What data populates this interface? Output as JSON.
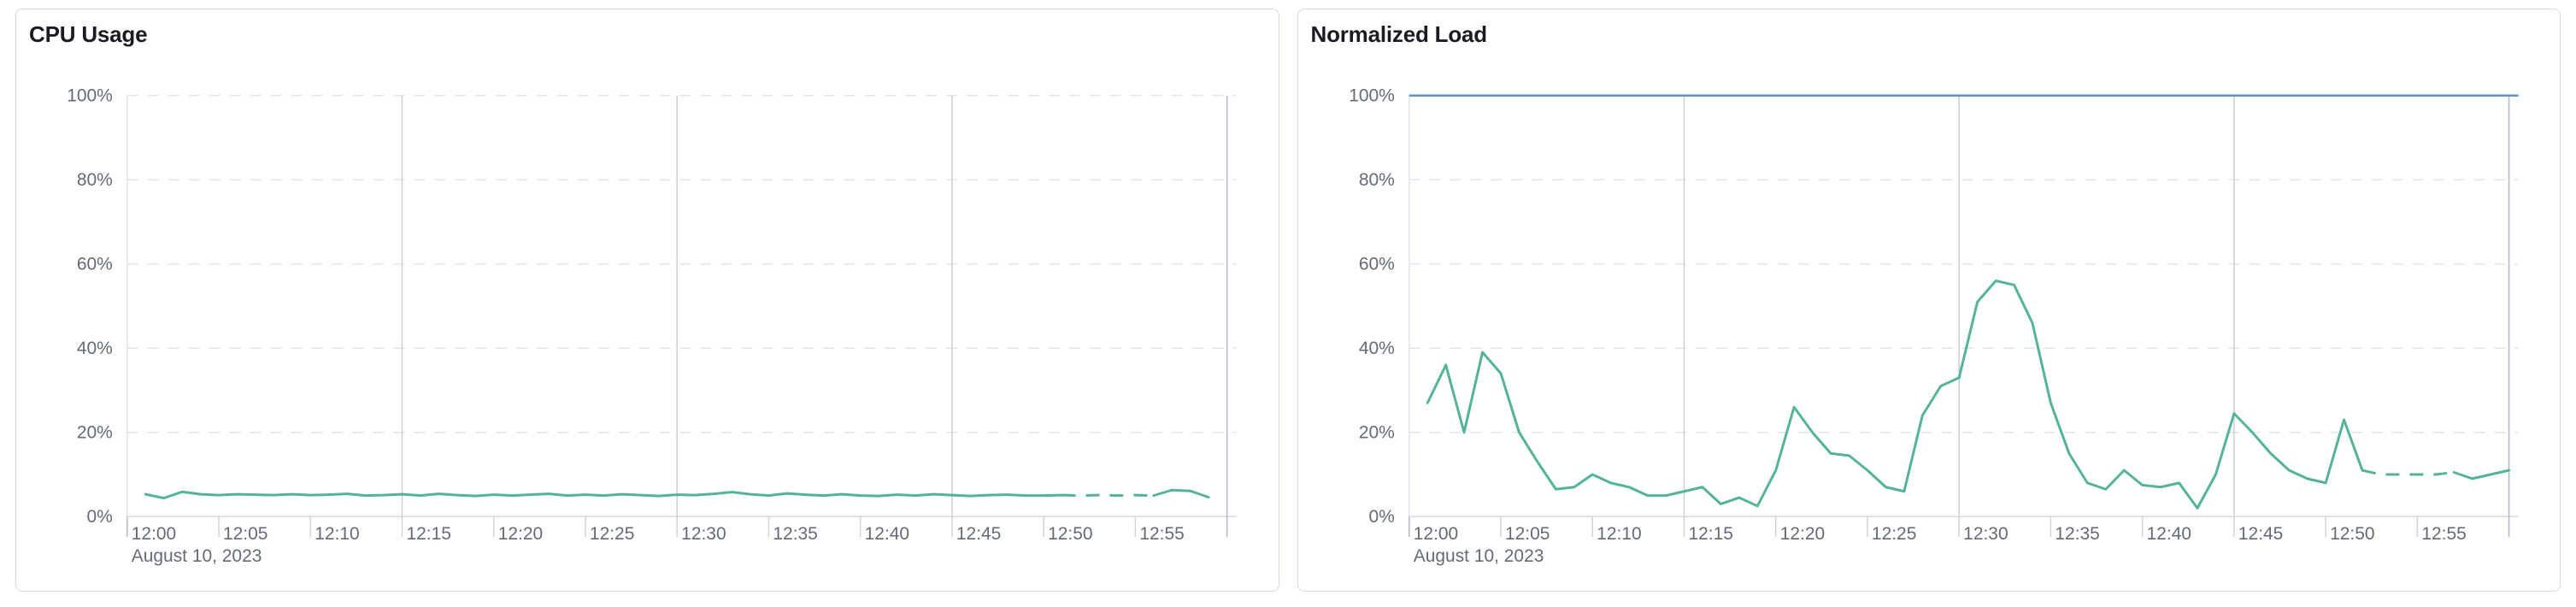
{
  "colors": {
    "page_background": "#ffffff",
    "panel_background": "#ffffff",
    "panel_border": "#d3dae6",
    "title_text": "#1a1c21",
    "axis_label_text": "#646a77",
    "h_gridline": "#e0e4ec",
    "v_gridline": "#c9cdd6",
    "axis_line": "#d6d9e0",
    "tick_mark": "#d0d4dc",
    "domain_edge_line": "#b4bac4",
    "series_green": "#54b399",
    "series_blue": "#6092c0"
  },
  "chart_data": [
    {
      "type": "line",
      "title": "CPU Usage",
      "x_axis": {
        "date_label": "August 10, 2023",
        "tick_labels": [
          "12:00",
          "12:05",
          "12:10",
          "12:15",
          "12:20",
          "12:25",
          "12:30",
          "12:35",
          "12:40",
          "12:45",
          "12:50",
          "12:55"
        ],
        "tick_interval_minutes": 5,
        "domain_minutes": [
          0,
          60
        ],
        "v_gridline_minutes": [
          15,
          30,
          45
        ],
        "domain_end_line_minute": 60
      },
      "y_axis": {
        "tick_labels": [
          "0%",
          "20%",
          "40%",
          "60%",
          "80%",
          "100%"
        ],
        "tick_values": [
          0,
          20,
          40,
          60,
          80,
          100
        ],
        "gridline_values": [
          20,
          40,
          60,
          80,
          100
        ],
        "ylim": [
          0,
          100
        ],
        "unit": "%"
      },
      "series": [
        {
          "name": "cpu-usage",
          "color": "#54b399",
          "start_minute": 1,
          "step_minutes": 1,
          "dashed_segment_minutes": [
            51,
            56
          ],
          "values": [
            5.3,
            4.4,
            5.9,
            5.3,
            5.1,
            5.3,
            5.2,
            5.1,
            5.3,
            5.1,
            5.2,
            5.4,
            5.0,
            5.1,
            5.3,
            5.0,
            5.4,
            5.1,
            4.9,
            5.2,
            5.0,
            5.2,
            5.4,
            5.0,
            5.2,
            5.0,
            5.3,
            5.1,
            4.9,
            5.2,
            5.1,
            5.4,
            5.8,
            5.3,
            5.0,
            5.5,
            5.2,
            5.0,
            5.3,
            5.0,
            4.9,
            5.2,
            5.0,
            5.3,
            5.1,
            4.9,
            5.1,
            5.2,
            5.0,
            5.0,
            5.1,
            5.0,
            5.1,
            5.0,
            5.1,
            5.0,
            6.3,
            6.1,
            4.6
          ]
        }
      ]
    },
    {
      "type": "line",
      "title": "Normalized Load",
      "x_axis": {
        "date_label": "August 10, 2023",
        "tick_labels": [
          "12:00",
          "12:05",
          "12:10",
          "12:15",
          "12:20",
          "12:25",
          "12:30",
          "12:35",
          "12:40",
          "12:45",
          "12:50",
          "12:55"
        ],
        "tick_interval_minutes": 5,
        "domain_minutes": [
          0,
          60
        ],
        "v_gridline_minutes": [
          15,
          30,
          45
        ],
        "domain_end_line_minute": 60
      },
      "y_axis": {
        "tick_labels": [
          "0%",
          "20%",
          "40%",
          "60%",
          "80%",
          "100%"
        ],
        "tick_values": [
          0,
          20,
          40,
          60,
          80,
          100
        ],
        "gridline_values": [
          20,
          40,
          60,
          80,
          100
        ],
        "ylim": [
          0,
          100
        ],
        "unit": "%"
      },
      "series": [
        {
          "name": "normalized-load",
          "color": "#54b399",
          "start_minute": 1,
          "step_minutes": 1,
          "dashed_segment_minutes": [
            52,
            57
          ],
          "values": [
            27,
            36,
            20,
            39,
            34,
            20,
            13,
            6.5,
            7,
            10,
            8,
            7,
            5,
            5,
            6,
            7,
            3,
            4.5,
            2.5,
            11,
            26,
            20,
            15,
            14.5,
            11,
            7,
            6,
            24,
            31,
            33,
            51,
            56,
            55,
            46,
            27,
            15,
            8,
            6.5,
            11,
            7.5,
            7,
            8,
            2,
            10,
            24.5,
            20,
            15,
            11,
            9,
            8,
            23,
            11,
            10,
            10,
            10,
            10,
            10.5,
            9,
            10,
            11
          ]
        },
        {
          "name": "load-limit-reference",
          "type": "reference",
          "color": "#6092c0",
          "value": 100
        }
      ]
    }
  ]
}
